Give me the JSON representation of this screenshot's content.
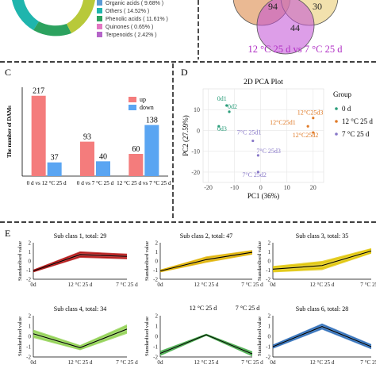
{
  "panel_a": {
    "legend": [
      {
        "label": "Organic acids ( 9.68% )",
        "color": "#5b9bd5"
      },
      {
        "label": "Others ( 14.52% )",
        "color": "#1fb5ad"
      },
      {
        "label": "Phenolic acids ( 11.61% )",
        "color": "#2ca25f"
      },
      {
        "label": "Quinones ( 0.65% )",
        "color": "#e377c2"
      },
      {
        "label": "Terpenoids ( 2.42% )",
        "color": "#b565c9"
      }
    ]
  },
  "panel_b": {
    "venn_labels": [
      "94",
      "30",
      "44"
    ],
    "caption": "12 °C 25 d vs 7 °C 25 d"
  },
  "chart_data": [
    {
      "panel": "C",
      "type": "bar",
      "ylabel": "The number of DAMs",
      "categories": [
        "0 d vs 12 °C 25 d",
        "0 d vs 7 °C 25 d",
        "12 °C 25 d vs 7 °C 25 d"
      ],
      "series": [
        {
          "name": "up",
          "color": "#f47c7c",
          "values": [
            217,
            93,
            60
          ]
        },
        {
          "name": "down",
          "color": "#5aa5f2",
          "values": [
            37,
            40,
            138
          ]
        }
      ],
      "ylim": [
        0,
        240
      ]
    },
    {
      "panel": "D",
      "type": "scatter",
      "title": "2D PCA Plot",
      "xlabel": "PC1 (36%)",
      "ylabel": "PC2 (27.59%)",
      "xlim": [
        -22,
        24
      ],
      "ylim": [
        -25,
        20
      ],
      "xticks": [
        -20,
        -10,
        0,
        10,
        20
      ],
      "yticks": [
        -20,
        -10,
        0,
        10
      ],
      "legend_title": "Group",
      "series": [
        {
          "name": "0 d",
          "color": "#2a9d7a",
          "points": [
            {
              "x": -13,
              "y": 12,
              "label": "0d1"
            },
            {
              "x": -12,
              "y": 9,
              "label": "0d2"
            },
            {
              "x": -16,
              "y": 2,
              "label": "0d3"
            }
          ]
        },
        {
          "name": "12 °C 25 d",
          "color": "#e07b28",
          "points": [
            {
              "x": 20,
              "y": 6,
              "label": "12°C25d3"
            },
            {
              "x": 18,
              "y": 2,
              "label": "12°C25d1"
            },
            {
              "x": 20,
              "y": -1,
              "label": "12°C25d2"
            }
          ]
        },
        {
          "name": "7 °C 25 d",
          "color": "#8878c8",
          "points": [
            {
              "x": -3,
              "y": -5,
              "label": "7°C 25d1"
            },
            {
              "x": -1,
              "y": -12,
              "label": "7°C 25d3"
            },
            {
              "x": -1,
              "y": -20,
              "label": "7°C 25d2"
            }
          ]
        }
      ]
    },
    {
      "panel": "E",
      "type": "line",
      "ylabel": "Standardised value",
      "x": [
        "0d",
        "12 °C 25 d",
        "7 °C 25 d"
      ],
      "yticks": [
        -2,
        -1,
        0,
        1,
        2
      ],
      "ylim": [
        -2,
        2
      ],
      "subplots": [
        {
          "title": "Sub class 1, total: 29",
          "color": "#b51515",
          "values": [
            -1.1,
            0.7,
            0.5
          ],
          "band": [
            0.15,
            0.35,
            0.3
          ]
        },
        {
          "title": "Sub class 2, total: 47",
          "color": "#e0b200",
          "values": [
            -1.1,
            0.15,
            0.95
          ],
          "band": [
            0.15,
            0.35,
            0.25
          ]
        },
        {
          "title": "Sub class 3, total: 35",
          "color": "#e0c400",
          "values": [
            -0.9,
            -0.5,
            1.1
          ],
          "band": [
            0.35,
            0.5,
            0.3
          ]
        },
        {
          "title": "Sub class 4, total: 34",
          "color": "#8fd14f",
          "values": [
            0.25,
            -1.1,
            0.7
          ],
          "band": [
            0.4,
            0.25,
            0.45
          ]
        },
        {
          "title": "",
          "color": "#4caf50",
          "values": [
            -1.65,
            0.15,
            -1.7
          ],
          "band": [
            0.25,
            0.1,
            0.25
          ]
        },
        {
          "title": "Sub class 6, total: 28",
          "color": "#2f6fba",
          "values": [
            -1.0,
            0.95,
            -1.0
          ],
          "band": [
            0.2,
            0.3,
            0.25
          ]
        }
      ],
      "floating_labels": [
        "12 °C 25 d",
        "7 °C 25 d"
      ]
    }
  ],
  "panel_labels": [
    "C",
    "D",
    "E"
  ]
}
